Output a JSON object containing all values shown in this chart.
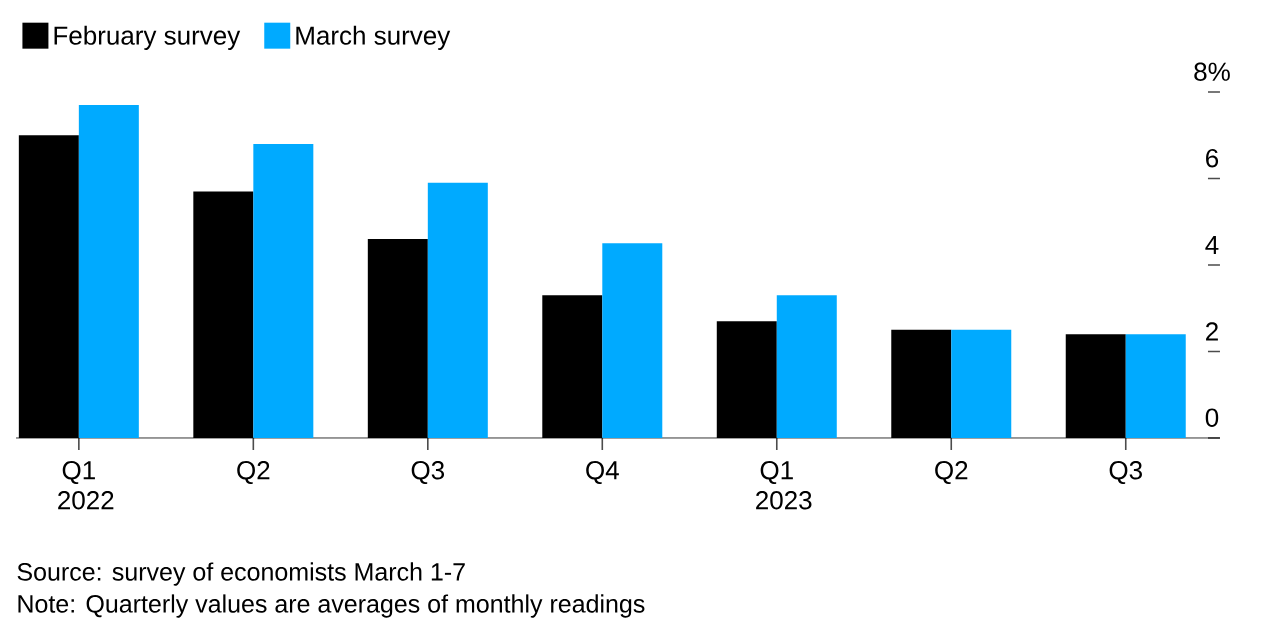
{
  "chart_data": {
    "type": "bar",
    "categories": [
      "Q1 2022",
      "Q2",
      "Q3",
      "Q4",
      "Q1 2023",
      "Q2",
      "Q3"
    ],
    "series": [
      {
        "name": "February survey",
        "color": "#000000",
        "values": [
          7.0,
          5.7,
          4.6,
          3.3,
          2.7,
          2.5,
          2.4
        ]
      },
      {
        "name": "March survey",
        "color": "#00aaff",
        "values": [
          7.7,
          6.8,
          5.9,
          4.5,
          3.3,
          2.5,
          2.4
        ]
      }
    ],
    "ylim": [
      0,
      8
    ],
    "yticks": [
      0,
      2,
      4,
      6,
      {
        "value": 8,
        "label": "8%"
      }
    ],
    "legend": "top left",
    "annotations": [
      "Source: survey of economists March 1-7",
      "Note: Quarterly values are averages of monthly readings"
    ]
  }
}
